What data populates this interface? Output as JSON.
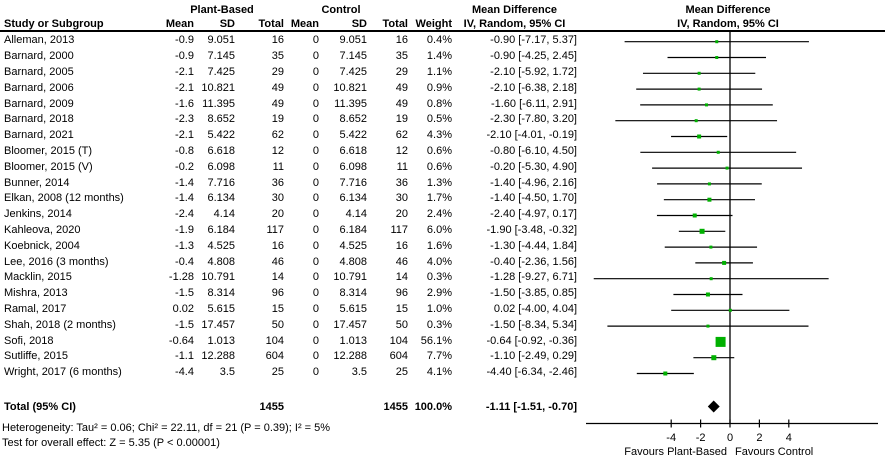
{
  "meta": {
    "marker_color": "#00b000",
    "line_color": "#000000",
    "background": "#ffffff"
  },
  "table": {
    "group_headers": {
      "plant_based": "Plant-Based",
      "control": "Control",
      "mean_difference": "Mean Difference"
    },
    "col_headers": {
      "study": "Study or Subgroup",
      "mean": "Mean",
      "sd": "SD",
      "total": "Total",
      "weight": "Weight",
      "iv": "IV, Random, 95% CI"
    }
  },
  "footnotes": {
    "heterogeneity": "Heterogeneity: Tau² = 0.06; Chi² = 22.11, df = 21 (P = 0.39); I² = 5%",
    "overall_effect": "Test for overall effect: Z = 5.35 (P < 0.00001)"
  },
  "chart_data": {
    "type": "forest",
    "title": "Mean Difference",
    "subtitle": "IV, Random, 95% CI",
    "axis": {
      "ticks": [
        -4,
        -2,
        0,
        2,
        4
      ],
      "min": -9.8,
      "max": 10.0,
      "favours_left": "Favours Plant-Based",
      "favours_right": "Favours Control"
    },
    "studies": [
      {
        "name": "Alleman, 2013",
        "pb_mean": "-0.9",
        "pb_sd": "9.051",
        "pb_total": 16,
        "c_mean": "0",
        "c_sd": "9.051",
        "c_total": 16,
        "weight": 0.4,
        "md": -0.9,
        "ci_low": -7.17,
        "ci_high": 5.37,
        "md_text": "-0.90 [-7.17, 5.37]"
      },
      {
        "name": "Barnard, 2000",
        "pb_mean": "-0.9",
        "pb_sd": "7.145",
        "pb_total": 35,
        "c_mean": "0",
        "c_sd": "7.145",
        "c_total": 35,
        "weight": 1.4,
        "md": -0.9,
        "ci_low": -4.25,
        "ci_high": 2.45,
        "md_text": "-0.90 [-4.25, 2.45]"
      },
      {
        "name": "Barnard, 2005",
        "pb_mean": "-2.1",
        "pb_sd": "7.425",
        "pb_total": 29,
        "c_mean": "0",
        "c_sd": "7.425",
        "c_total": 29,
        "weight": 1.1,
        "md": -2.1,
        "ci_low": -5.92,
        "ci_high": 1.72,
        "md_text": "-2.10 [-5.92, 1.72]"
      },
      {
        "name": "Barnard, 2006",
        "pb_mean": "-2.1",
        "pb_sd": "10.821",
        "pb_total": 49,
        "c_mean": "0",
        "c_sd": "10.821",
        "c_total": 49,
        "weight": 0.9,
        "md": -2.1,
        "ci_low": -6.38,
        "ci_high": 2.18,
        "md_text": "-2.10 [-6.38, 2.18]"
      },
      {
        "name": "Barnard, 2009",
        "pb_mean": "-1.6",
        "pb_sd": "11.395",
        "pb_total": 49,
        "c_mean": "0",
        "c_sd": "11.395",
        "c_total": 49,
        "weight": 0.8,
        "md": -1.6,
        "ci_low": -6.11,
        "ci_high": 2.91,
        "md_text": "-1.60 [-6.11, 2.91]"
      },
      {
        "name": "Barnard, 2018",
        "pb_mean": "-2.3",
        "pb_sd": "8.652",
        "pb_total": 19,
        "c_mean": "0",
        "c_sd": "8.652",
        "c_total": 19,
        "weight": 0.5,
        "md": -2.3,
        "ci_low": -7.8,
        "ci_high": 3.2,
        "md_text": "-2.30 [-7.80, 3.20]"
      },
      {
        "name": "Barnard, 2021",
        "pb_mean": "-2.1",
        "pb_sd": "5.422",
        "pb_total": 62,
        "c_mean": "0",
        "c_sd": "5.422",
        "c_total": 62,
        "weight": 4.3,
        "md": -2.1,
        "ci_low": -4.01,
        "ci_high": -0.19,
        "md_text": "-2.10 [-4.01, -0.19]"
      },
      {
        "name": "Bloomer, 2015 (T)",
        "pb_mean": "-0.8",
        "pb_sd": "6.618",
        "pb_total": 12,
        "c_mean": "0",
        "c_sd": "6.618",
        "c_total": 12,
        "weight": 0.6,
        "md": -0.8,
        "ci_low": -6.1,
        "ci_high": 4.5,
        "md_text": "-0.80 [-6.10, 4.50]"
      },
      {
        "name": "Bloomer, 2015 (V)",
        "pb_mean": "-0.2",
        "pb_sd": "6.098",
        "pb_total": 11,
        "c_mean": "0",
        "c_sd": "6.098",
        "c_total": 11,
        "weight": 0.6,
        "md": -0.2,
        "ci_low": -5.3,
        "ci_high": 4.9,
        "md_text": "-0.20 [-5.30, 4.90]"
      },
      {
        "name": "Bunner, 2014",
        "pb_mean": "-1.4",
        "pb_sd": "7.716",
        "pb_total": 36,
        "c_mean": "0",
        "c_sd": "7.716",
        "c_total": 36,
        "weight": 1.3,
        "md": -1.4,
        "ci_low": -4.96,
        "ci_high": 2.16,
        "md_text": "-1.40 [-4.96, 2.16]"
      },
      {
        "name": "Elkan, 2008 (12 months)",
        "pb_mean": "-1.4",
        "pb_sd": "6.134",
        "pb_total": 30,
        "c_mean": "0",
        "c_sd": "6.134",
        "c_total": 30,
        "weight": 1.7,
        "md": -1.4,
        "ci_low": -4.5,
        "ci_high": 1.7,
        "md_text": "-1.40 [-4.50, 1.70]"
      },
      {
        "name": "Jenkins, 2014",
        "pb_mean": "-2.4",
        "pb_sd": "4.14",
        "pb_total": 20,
        "c_mean": "0",
        "c_sd": "4.14",
        "c_total": 20,
        "weight": 2.4,
        "md": -2.4,
        "ci_low": -4.97,
        "ci_high": 0.17,
        "md_text": "-2.40 [-4.97, 0.17]"
      },
      {
        "name": "Kahleova, 2020",
        "pb_mean": "-1.9",
        "pb_sd": "6.184",
        "pb_total": 117,
        "c_mean": "0",
        "c_sd": "6.184",
        "c_total": 117,
        "weight": 6.0,
        "md": -1.9,
        "ci_low": -3.48,
        "ci_high": -0.32,
        "md_text": "-1.90 [-3.48, -0.32]"
      },
      {
        "name": "Koebnick, 2004",
        "pb_mean": "-1.3",
        "pb_sd": "4.525",
        "pb_total": 16,
        "c_mean": "0",
        "c_sd": "4.525",
        "c_total": 16,
        "weight": 1.6,
        "md": -1.3,
        "ci_low": -4.44,
        "ci_high": 1.84,
        "md_text": "-1.30 [-4.44, 1.84]"
      },
      {
        "name": "Lee, 2016 (3 months)",
        "pb_mean": "-0.4",
        "pb_sd": "4.808",
        "pb_total": 46,
        "c_mean": "0",
        "c_sd": "4.808",
        "c_total": 46,
        "weight": 4.0,
        "md": -0.4,
        "ci_low": -2.36,
        "ci_high": 1.56,
        "md_text": "-0.40 [-2.36, 1.56]"
      },
      {
        "name": "Macklin, 2015",
        "pb_mean": "-1.28",
        "pb_sd": "10.791",
        "pb_total": 14,
        "c_mean": "0",
        "c_sd": "10.791",
        "c_total": 14,
        "weight": 0.3,
        "md": -1.28,
        "ci_low": -9.27,
        "ci_high": 6.71,
        "md_text": "-1.28 [-9.27, 6.71]"
      },
      {
        "name": "Mishra, 2013",
        "pb_mean": "-1.5",
        "pb_sd": "8.314",
        "pb_total": 96,
        "c_mean": "0",
        "c_sd": "8.314",
        "c_total": 96,
        "weight": 2.9,
        "md": -1.5,
        "ci_low": -3.85,
        "ci_high": 0.85,
        "md_text": "-1.50 [-3.85, 0.85]"
      },
      {
        "name": "Ramal, 2017",
        "pb_mean": "0.02",
        "pb_sd": "5.615",
        "pb_total": 15,
        "c_mean": "0",
        "c_sd": "5.615",
        "c_total": 15,
        "weight": 1.0,
        "md": 0.02,
        "ci_low": -4.0,
        "ci_high": 4.04,
        "md_text": "0.02 [-4.00, 4.04]"
      },
      {
        "name": "Shah, 2018 (2 months)",
        "pb_mean": "-1.5",
        "pb_sd": "17.457",
        "pb_total": 50,
        "c_mean": "0",
        "c_sd": "17.457",
        "c_total": 50,
        "weight": 0.3,
        "md": -1.5,
        "ci_low": -8.34,
        "ci_high": 5.34,
        "md_text": "-1.50 [-8.34, 5.34]"
      },
      {
        "name": "Sofi, 2018",
        "pb_mean": "-0.64",
        "pb_sd": "1.013",
        "pb_total": 104,
        "c_mean": "0",
        "c_sd": "1.013",
        "c_total": 104,
        "weight": 56.1,
        "md": -0.64,
        "ci_low": -0.92,
        "ci_high": -0.36,
        "md_text": "-0.64 [-0.92, -0.36]"
      },
      {
        "name": "Sutliffe, 2015",
        "pb_mean": "-1.1",
        "pb_sd": "12.288",
        "pb_total": 604,
        "c_mean": "0",
        "c_sd": "12.288",
        "c_total": 604,
        "weight": 7.7,
        "md": -1.1,
        "ci_low": -2.49,
        "ci_high": 0.29,
        "md_text": "-1.10 [-2.49, 0.29]"
      },
      {
        "name": "Wright, 2017 (6 months)",
        "pb_mean": "-4.4",
        "pb_sd": "3.5",
        "pb_total": 25,
        "c_mean": "0",
        "c_sd": "3.5",
        "c_total": 25,
        "weight": 4.1,
        "md": -4.4,
        "ci_low": -6.34,
        "ci_high": -2.46,
        "md_text": "-4.40 [-6.34, -2.46]"
      }
    ],
    "total": {
      "label": "Total (95% CI)",
      "pb_total": "1455",
      "c_total": "1455",
      "weight_text": "100.0%",
      "md": -1.11,
      "ci_low": -1.51,
      "ci_high": -0.7,
      "md_text": "-1.11 [-1.51, -0.70]"
    }
  }
}
